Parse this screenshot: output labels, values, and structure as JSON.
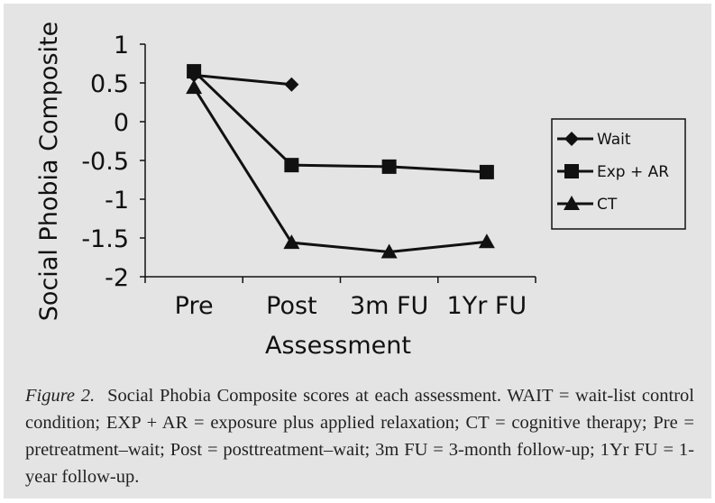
{
  "chart_data": {
    "type": "line",
    "xlabel": "Assessment",
    "ylabel": "Social Phobia Composite",
    "categories": [
      "Pre",
      "Post",
      "3m FU",
      "1Yr FU"
    ],
    "ylim": [
      -2,
      1
    ],
    "yticks": [
      1,
      0.5,
      0,
      -0.5,
      -1,
      -1.5,
      -2
    ],
    "legend_position": "right",
    "series": [
      {
        "name": "Wait",
        "marker": "diamond",
        "values": [
          0.6,
          0.48,
          null,
          null
        ]
      },
      {
        "name": "Exp + AR",
        "marker": "square",
        "values": [
          0.65,
          -0.56,
          -0.58,
          -0.65
        ]
      },
      {
        "name": "CT",
        "marker": "triangle",
        "values": [
          0.44,
          -1.56,
          -1.68,
          -1.55
        ]
      }
    ]
  },
  "caption": {
    "label": "Figure 2.",
    "text": "Social Phobia Composite scores at each assessment. WAIT = wait-list control condition; EXP + AR = exposure plus applied relaxation; CT = cognitive therapy; Pre = pretreatment–wait; Post = posttreatment–wait; 3m FU = 3-month follow-up; 1Yr FU = 1-year follow-up."
  },
  "colors": {
    "background": "#e4e4e4",
    "ink": "#111111"
  }
}
